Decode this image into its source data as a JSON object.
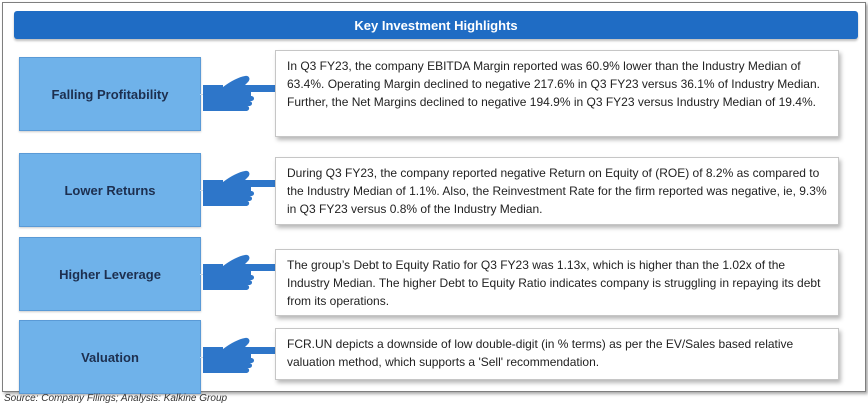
{
  "title": "Key Investment Highlights",
  "rows": [
    {
      "label": "Falling Profitability",
      "text": "In Q3 FY23, the  company EBITDA Margin reported was 60.9% lower than the Industry Median of 63.4%. Operating Margin declined to negative  217.6% in Q3 FY23 versus 36.1% of Industry Median. Further, the Net Margins declined to  negative 194.9% in Q3 FY23  versus Industry Median of 19.4%."
    },
    {
      "label": "Lower Returns",
      "text": "During Q3 FY23, the company reported  negative Return on Equity of (ROE) of 8.2% as compared to the Industry Median of 1.1%. Also, the Reinvestment Rate for the firm reported was negative, ie, 9.3% in Q3 FY23 versus 0.8% of the Industry Median."
    },
    {
      "label": "Higher Leverage",
      "text": "The group’s  Debt to Equity Ratio for Q3 FY23 was  1.13x, which is higher than the 1.02x of the Industry Median. The higher Debt to Equity Ratio indicates company is struggling in repaying its debt from its operations."
    },
    {
      "label": "Valuation",
      "text": "FCR.UN  depicts a downside of low double-digit (in % terms) as per the EV/Sales based relative valuation method, which supports a 'Sell' recommendation."
    }
  ],
  "source": "Source: Company Filings; Analysis: Kalkine Group",
  "colors": {
    "header_bg": "#1f6cc4",
    "label_bg": "#6fb2ea",
    "hand": "#2e76c9"
  },
  "icons": [
    "pointing-hand-icon"
  ]
}
